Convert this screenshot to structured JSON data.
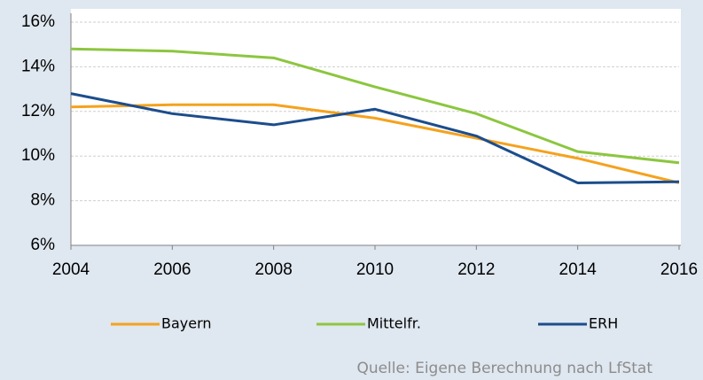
{
  "chart_data": {
    "type": "line",
    "x": [
      2004,
      2006,
      2008,
      2010,
      2012,
      2014,
      2016
    ],
    "series": [
      {
        "name": "Bayern",
        "color": "#f5a21e",
        "values": [
          12.2,
          12.3,
          12.3,
          11.7,
          10.8,
          9.9,
          8.8
        ]
      },
      {
        "name": "Mittelfr.",
        "color": "#8cc63f",
        "values": [
          14.8,
          14.7,
          14.4,
          13.1,
          11.9,
          10.2,
          9.7
        ]
      },
      {
        "name": "ERH",
        "color": "#1c4d8c",
        "values": [
          12.8,
          11.9,
          11.4,
          12.1,
          10.9,
          8.8,
          8.85
        ]
      }
    ],
    "xlim": [
      2004,
      2016
    ],
    "xticks": [
      2004,
      2006,
      2008,
      2010,
      2012,
      2014,
      2016
    ],
    "ylim": [
      6,
      16
    ],
    "yticks": [
      {
        "value": 6,
        "label": "6%"
      },
      {
        "value": 8,
        "label": "8%"
      },
      {
        "value": 10,
        "label": "10%"
      },
      {
        "value": 12,
        "label": "12%"
      },
      {
        "value": 14,
        "label": "14%"
      },
      {
        "value": 16,
        "label": "16%"
      }
    ],
    "grid": true,
    "legend": "bottom",
    "source": "Quelle: Eigene Berechnung nach LfStat"
  }
}
